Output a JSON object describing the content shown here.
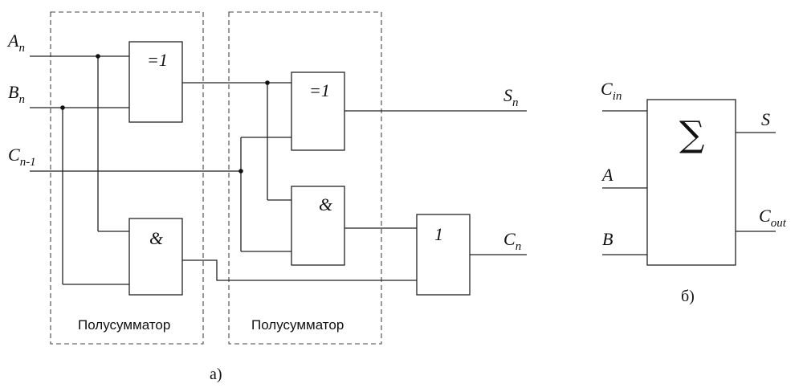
{
  "diagram_a": {
    "inputs": {
      "a": {
        "main": "A",
        "sub": "n"
      },
      "b": {
        "main": "B",
        "sub": "n"
      },
      "c": {
        "main": "C",
        "sub": "n-1"
      }
    },
    "outputs": {
      "s": {
        "main": "S",
        "sub": "n"
      },
      "c": {
        "main": "C",
        "sub": "n"
      }
    },
    "gates": {
      "xor1": "=1",
      "and1": "&",
      "xor2": "=1",
      "and2": "&",
      "or": "1"
    },
    "half_adder_label_1": "Полусумматор",
    "half_adder_label_2": "Полусумматор",
    "caption": "а)"
  },
  "diagram_b": {
    "symbol": "∑",
    "inputs": {
      "cin": {
        "main": "C",
        "sub": "in"
      },
      "a": {
        "main": "A",
        "sub": ""
      },
      "b": {
        "main": "B",
        "sub": ""
      }
    },
    "outputs": {
      "s": {
        "main": "S",
        "sub": ""
      },
      "cout": {
        "main": "C",
        "sub": "out"
      }
    },
    "caption": "б)"
  }
}
